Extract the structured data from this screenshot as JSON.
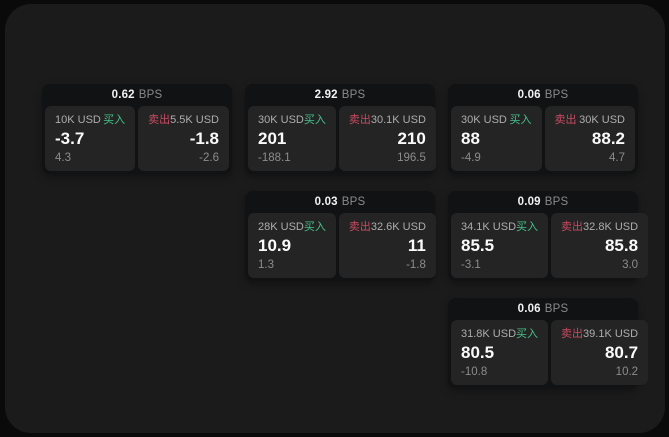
{
  "labels": {
    "buy": "买入",
    "sell": "卖出",
    "bps_unit": "BPS"
  },
  "colors": {
    "page_background": "#1b1b1b",
    "outer_background": "#0a0a0a",
    "card_background": "#111213",
    "panel_background": "#242424",
    "buy_green": "#46c28a",
    "sell_red": "#cb4961",
    "value_white": "#fafafa",
    "muted_gray": "#8c8c8c"
  },
  "cards": [
    {
      "bps": "0.62",
      "buy": {
        "amount": "10K USD",
        "value": "-3.7",
        "delta": "4.3"
      },
      "sell": {
        "amount": "5.5K USD",
        "value": "-1.8",
        "delta": "-2.6"
      }
    },
    {
      "bps": "2.92",
      "buy": {
        "amount": "30K USD",
        "value": "201",
        "delta": "-188.1"
      },
      "sell": {
        "amount": "30.1K USD",
        "value": "210",
        "delta": "196.5"
      }
    },
    {
      "bps": "0.06",
      "buy": {
        "amount": "30K USD",
        "value": "88",
        "delta": "-4.9"
      },
      "sell": {
        "amount": "30K USD",
        "value": "88.2",
        "delta": "4.7"
      }
    },
    {
      "bps": "0.03",
      "buy": {
        "amount": "28K USD",
        "value": "10.9",
        "delta": "1.3"
      },
      "sell": {
        "amount": "32.6K USD",
        "value": "11",
        "delta": "-1.8"
      }
    },
    {
      "bps": "0.09",
      "buy": {
        "amount": "34.1K USD",
        "value": "85.5",
        "delta": "-3.1"
      },
      "sell": {
        "amount": "32.8K USD",
        "value": "85.8",
        "delta": "3.0"
      }
    },
    {
      "bps": "0.06",
      "buy": {
        "amount": "31.8K USD",
        "value": "80.5",
        "delta": "-10.8"
      },
      "sell": {
        "amount": "39.1K USD",
        "value": "80.7",
        "delta": "10.2"
      }
    }
  ]
}
